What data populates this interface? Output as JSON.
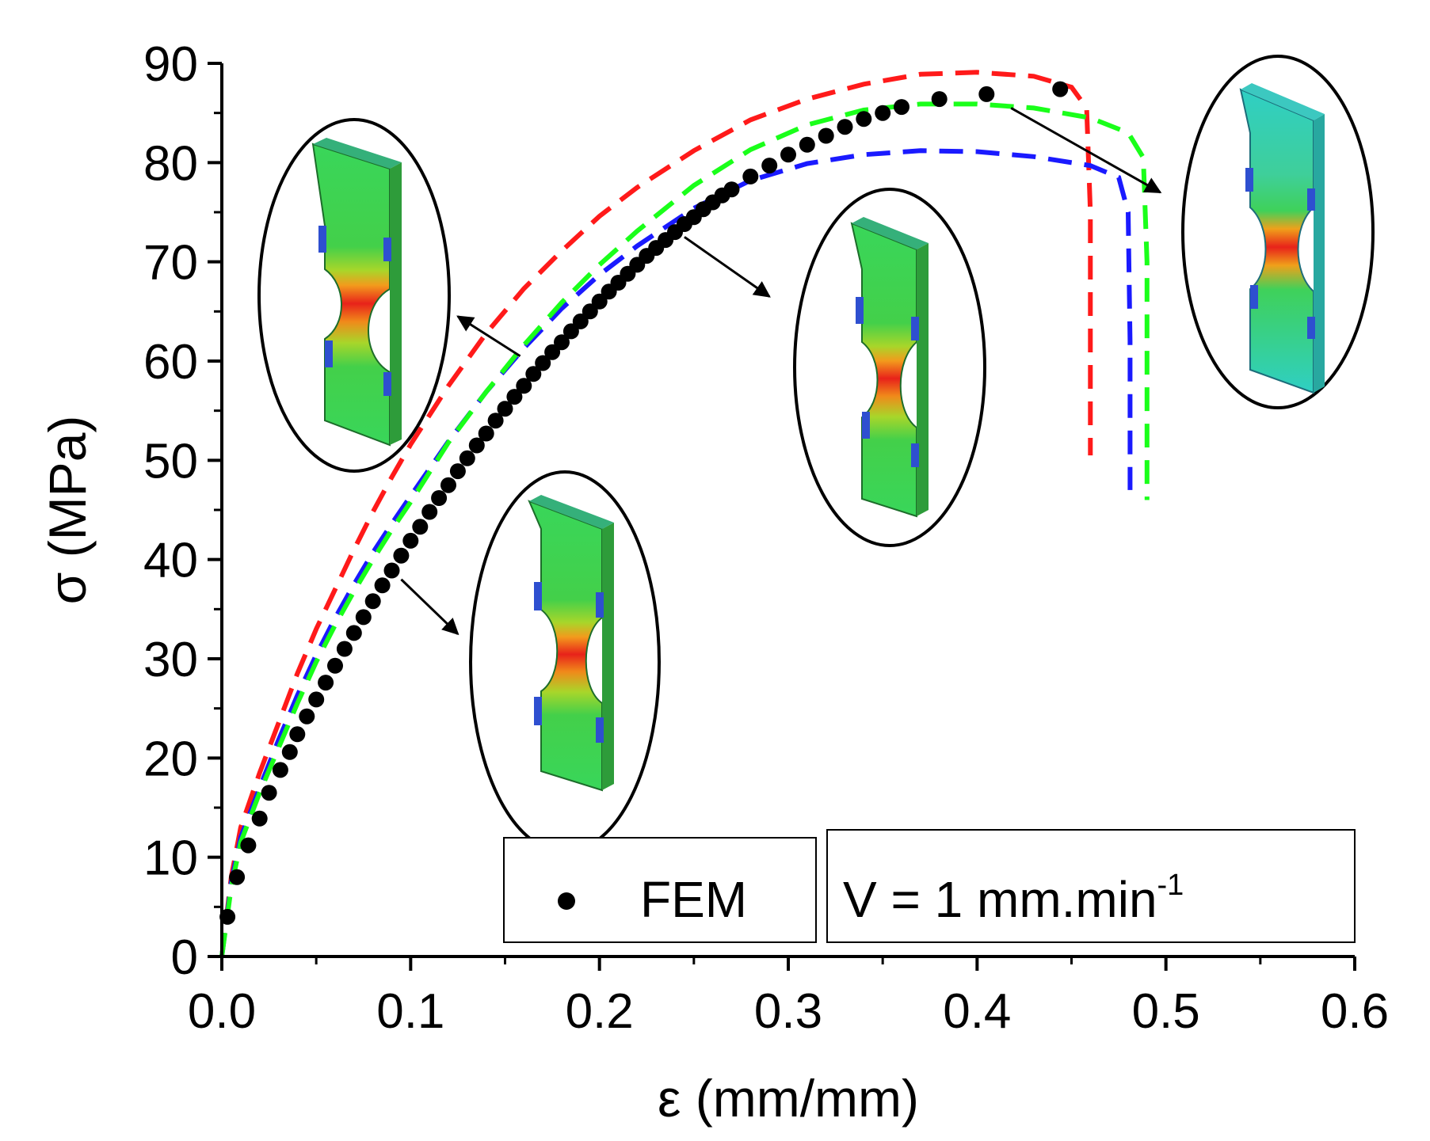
{
  "chart_data": {
    "type": "line",
    "xlabel": "ε (mm/mm)",
    "ylabel": "σ (MPa)",
    "xlim": [
      0,
      0.6
    ],
    "ylim": [
      0,
      90
    ],
    "x_ticks": [
      0.0,
      0.1,
      0.2,
      0.3,
      0.4,
      0.5,
      0.6
    ],
    "x_tick_labels": [
      "0.0",
      "0.1",
      "0.2",
      "0.3",
      "0.4",
      "0.5",
      "0.6"
    ],
    "y_ticks": [
      0,
      10,
      20,
      30,
      40,
      50,
      60,
      70,
      80,
      90
    ],
    "y_tick_labels": [
      "0",
      "10",
      "20",
      "30",
      "40",
      "50",
      "60",
      "70",
      "80",
      "90"
    ],
    "grid": false,
    "legend": {
      "placement": "bottom-right",
      "marker_label": "FEM",
      "condition_main": "V = 1 mm.min",
      "condition_sup": "-1"
    },
    "series": [
      {
        "name": "FEM",
        "style": "dots",
        "color": "#000000",
        "x": [
          0.003,
          0.008,
          0.014,
          0.02,
          0.025,
          0.031,
          0.036,
          0.04,
          0.045,
          0.05,
          0.055,
          0.06,
          0.065,
          0.07,
          0.075,
          0.08,
          0.085,
          0.09,
          0.095,
          0.1,
          0.105,
          0.11,
          0.115,
          0.12,
          0.125,
          0.13,
          0.135,
          0.14,
          0.145,
          0.15,
          0.155,
          0.16,
          0.165,
          0.17,
          0.175,
          0.18,
          0.185,
          0.19,
          0.195,
          0.2,
          0.205,
          0.21,
          0.215,
          0.22,
          0.225,
          0.23,
          0.235,
          0.24,
          0.245,
          0.25,
          0.255,
          0.26,
          0.265,
          0.27,
          0.28,
          0.29,
          0.3,
          0.31,
          0.32,
          0.33,
          0.34,
          0.35,
          0.36,
          0.38,
          0.405,
          0.444
        ],
        "y": [
          4,
          8,
          11.2,
          13.9,
          16.5,
          18.8,
          20.6,
          22.4,
          24.2,
          25.9,
          27.6,
          29.3,
          31,
          32.6,
          34.2,
          35.8,
          37.4,
          38.9,
          40.4,
          41.9,
          43.3,
          44.8,
          46.2,
          47.5,
          48.9,
          50.2,
          51.5,
          52.7,
          54,
          55.2,
          56.4,
          57.5,
          58.7,
          59.8,
          60.9,
          61.9,
          63,
          64,
          65,
          66,
          67,
          67.9,
          68.8,
          69.7,
          70.6,
          71.4,
          72.2,
          73,
          73.8,
          74.5,
          75.3,
          76,
          76.7,
          77.3,
          78.6,
          79.7,
          80.8,
          81.8,
          82.7,
          83.6,
          84.4,
          85,
          85.6,
          86.4,
          86.9,
          87.4
        ]
      },
      {
        "name": "red",
        "style": "dashed",
        "color": "#ff1a1a",
        "x": [
          0,
          0.005,
          0.01,
          0.02,
          0.03,
          0.04,
          0.05,
          0.06,
          0.07,
          0.08,
          0.09,
          0.1,
          0.12,
          0.14,
          0.16,
          0.18,
          0.2,
          0.22,
          0.25,
          0.28,
          0.31,
          0.34,
          0.37,
          0.4,
          0.43,
          0.45,
          0.458,
          0.46,
          0.46
        ],
        "y": [
          0,
          8,
          13,
          18.5,
          23.5,
          28.5,
          33,
          37,
          41,
          44.8,
          48.3,
          51.6,
          57.5,
          62.8,
          67.3,
          71.1,
          74.6,
          77.5,
          81.2,
          84.3,
          86.4,
          87.9,
          88.9,
          89.1,
          88.7,
          87.6,
          85.5,
          75,
          50.5
        ]
      },
      {
        "name": "blue",
        "style": "dashed",
        "color": "#1a1aff",
        "x": [
          0,
          0.005,
          0.01,
          0.02,
          0.03,
          0.04,
          0.05,
          0.06,
          0.07,
          0.08,
          0.09,
          0.1,
          0.12,
          0.14,
          0.16,
          0.18,
          0.2,
          0.22,
          0.25,
          0.28,
          0.31,
          0.34,
          0.37,
          0.4,
          0.43,
          0.46,
          0.475,
          0.48,
          0.481,
          0.481
        ],
        "y": [
          0,
          7.5,
          12,
          17,
          21.8,
          26.3,
          30.4,
          34.1,
          37.5,
          40.7,
          43.6,
          46.4,
          51.9,
          56.9,
          61.3,
          65.3,
          68.7,
          71.6,
          75.4,
          78.2,
          79.9,
          80.8,
          81.2,
          81.1,
          80.6,
          79.7,
          78.5,
          75,
          62,
          47
        ]
      },
      {
        "name": "green",
        "style": "dashed",
        "color": "#1aff1a",
        "x": [
          0,
          0.005,
          0.01,
          0.02,
          0.03,
          0.04,
          0.05,
          0.06,
          0.07,
          0.08,
          0.09,
          0.1,
          0.12,
          0.14,
          0.16,
          0.18,
          0.2,
          0.22,
          0.25,
          0.28,
          0.31,
          0.34,
          0.37,
          0.4,
          0.43,
          0.46,
          0.48,
          0.488,
          0.49,
          0.49
        ],
        "y": [
          0,
          7,
          11.5,
          16.5,
          21,
          25.5,
          29.7,
          33.4,
          36.8,
          40,
          43,
          45.8,
          51.8,
          56.9,
          61.6,
          65.9,
          69.7,
          73.1,
          77.7,
          81.3,
          83.8,
          85.3,
          85.9,
          85.9,
          85.5,
          84.5,
          83,
          80.5,
          70,
          46
        ]
      }
    ],
    "annotations": [
      {
        "name": "inset-strain-0.1",
        "from": [
          0.095,
          38
        ],
        "to": [
          0.125,
          32.5
        ]
      },
      {
        "name": "inset-strain-0.17",
        "from": [
          0.158,
          60.5
        ],
        "to": [
          0.125,
          64.5
        ]
      },
      {
        "name": "inset-strain-0.24",
        "from": [
          0.245,
          72.5
        ],
        "to": [
          0.29,
          66.5
        ]
      },
      {
        "name": "inset-strain-0.41",
        "from": [
          0.418,
          85.5
        ],
        "to": [
          0.497,
          77
        ]
      }
    ]
  }
}
